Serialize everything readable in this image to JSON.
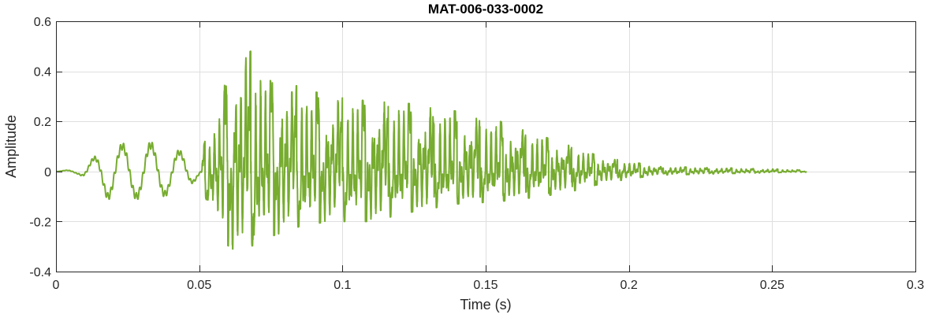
{
  "chart_data": {
    "type": "line",
    "title": "MAT-006-033-0002",
    "xlabel": "Time (s)",
    "ylabel": "Amplitude",
    "xlim": [
      0,
      0.3
    ],
    "ylim": [
      -0.4,
      0.6
    ],
    "xticks": [
      0,
      0.05,
      0.1,
      0.15,
      0.2,
      0.25,
      0.3
    ],
    "xtick_labels": [
      "0",
      "0.05",
      "0.1",
      "0.15",
      "0.2",
      "0.25",
      "0.3"
    ],
    "yticks": [
      -0.4,
      -0.2,
      0,
      0.2,
      0.4,
      0.6
    ],
    "ytick_labels": [
      "-0.4",
      "-0.2",
      "0",
      "0.2",
      "0.4",
      "0.6"
    ],
    "grid": true,
    "line_color": "#77AC30",
    "signal_end": 0.262,
    "envelope": [
      [
        0.0,
        0.0,
        0.0
      ],
      [
        0.004,
        0.005,
        -0.005
      ],
      [
        0.008,
        0.01,
        -0.01
      ],
      [
        0.013,
        0.05,
        -0.05
      ],
      [
        0.018,
        0.09,
        -0.1
      ],
      [
        0.023,
        0.1,
        -0.1
      ],
      [
        0.03,
        0.11,
        -0.1
      ],
      [
        0.036,
        0.1,
        -0.1
      ],
      [
        0.042,
        0.08,
        -0.07
      ],
      [
        0.047,
        0.06,
        -0.05
      ],
      [
        0.05,
        0.04,
        -0.02
      ],
      [
        0.052,
        0.12,
        -0.1
      ],
      [
        0.056,
        0.2,
        -0.2
      ],
      [
        0.058,
        0.32,
        -0.28
      ],
      [
        0.063,
        0.47,
        -0.32
      ],
      [
        0.068,
        0.48,
        -0.3
      ],
      [
        0.075,
        0.36,
        -0.26
      ],
      [
        0.085,
        0.34,
        -0.22
      ],
      [
        0.095,
        0.3,
        -0.2
      ],
      [
        0.11,
        0.28,
        -0.2
      ],
      [
        0.125,
        0.27,
        -0.16
      ],
      [
        0.14,
        0.24,
        -0.13
      ],
      [
        0.155,
        0.2,
        -0.12
      ],
      [
        0.17,
        0.14,
        -0.1
      ],
      [
        0.18,
        0.1,
        -0.08
      ],
      [
        0.19,
        0.06,
        -0.05
      ],
      [
        0.2,
        0.04,
        -0.03
      ],
      [
        0.21,
        0.02,
        -0.015
      ],
      [
        0.23,
        0.015,
        -0.01
      ],
      [
        0.25,
        0.01,
        -0.005
      ],
      [
        0.262,
        0.005,
        -0.003
      ]
    ]
  }
}
